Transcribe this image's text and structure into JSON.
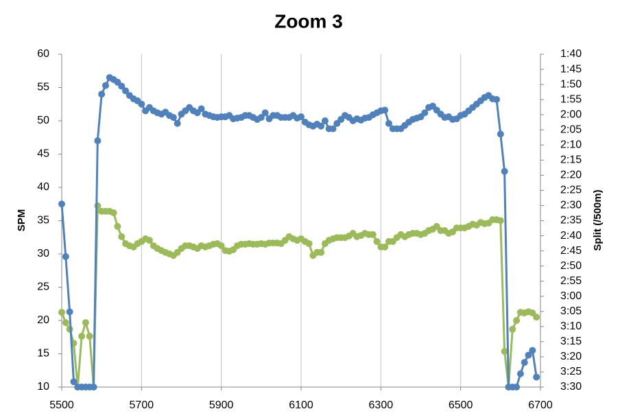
{
  "chart_data": {
    "type": "line",
    "title": "Zoom 3",
    "y_label": "SPM",
    "y2_label": "Split (/500m)",
    "x": [
      5500,
      5510,
      5520,
      5530,
      5540,
      5550,
      5560,
      5570,
      5580,
      5590,
      5600,
      5610,
      5620,
      5630,
      5640,
      5650,
      5660,
      5670,
      5680,
      5690,
      5700,
      5710,
      5720,
      5730,
      5740,
      5750,
      5760,
      5770,
      5780,
      5790,
      5800,
      5810,
      5820,
      5830,
      5840,
      5850,
      5860,
      5870,
      5880,
      5890,
      5900,
      5910,
      5920,
      5930,
      5940,
      5950,
      5960,
      5970,
      5980,
      5990,
      6000,
      6010,
      6020,
      6030,
      6040,
      6050,
      6060,
      6070,
      6080,
      6090,
      6100,
      6110,
      6120,
      6130,
      6140,
      6150,
      6160,
      6170,
      6180,
      6190,
      6200,
      6210,
      6220,
      6230,
      6240,
      6250,
      6260,
      6270,
      6280,
      6290,
      6300,
      6310,
      6320,
      6330,
      6340,
      6350,
      6360,
      6370,
      6380,
      6390,
      6400,
      6410,
      6420,
      6430,
      6440,
      6450,
      6460,
      6470,
      6480,
      6490,
      6500,
      6510,
      6520,
      6530,
      6540,
      6550,
      6560,
      6570,
      6580,
      6590,
      6600,
      6610,
      6620,
      6630,
      6640,
      6650,
      6660,
      6670,
      6680,
      6690
    ],
    "series": [
      {
        "color": "#4f81bd",
        "values": [
          37.5,
          29.6,
          21.3,
          10.8,
          10,
          10,
          10,
          10,
          10,
          47,
          54,
          55.3,
          56.5,
          56.2,
          55.8,
          55.2,
          54.5,
          53.8,
          53.3,
          53,
          52.5,
          51.5,
          52,
          51.5,
          51.2,
          51,
          51.3,
          50.8,
          50.5,
          49.6,
          51,
          51.5,
          52,
          51.5,
          51.2,
          51.8,
          51,
          50.8,
          50.6,
          50.5,
          50.6,
          50.6,
          50.8,
          50.3,
          50.4,
          50.5,
          50.8,
          50.8,
          50.5,
          50.2,
          50.5,
          51.2,
          50.3,
          50.8,
          50.8,
          50.5,
          50.5,
          50.5,
          50.8,
          50.4,
          50.6,
          49.8,
          49.4,
          49.2,
          49.5,
          49.2,
          50,
          48.8,
          48.8,
          49.6,
          50.2,
          50.8,
          50.5,
          50,
          50.3,
          50.1,
          50.4,
          50.5,
          50.9,
          51.2,
          51.5,
          51.6,
          49.6,
          48.8,
          48.8,
          48.8,
          49.3,
          49.8,
          50.2,
          50.4,
          50.6,
          51.2,
          52,
          52.2,
          51.6,
          51,
          50.5,
          50.6,
          50.2,
          50.3,
          50.8,
          51,
          51.5,
          52,
          52.5,
          53,
          53.5,
          53.8,
          53.3,
          53.2,
          48,
          42.4,
          10,
          10,
          10,
          12,
          13.7,
          14.8,
          15.5,
          11.5
        ]
      },
      {
        "color": "#9bbb59",
        "axis": "y2",
        "values": [
          185.3,
          188.7,
          190.9,
          195.5,
          210,
          193.2,
          188.7,
          193.2,
          210,
          150.1,
          151.9,
          151.9,
          151.9,
          152.4,
          156.9,
          160.3,
          162.6,
          163.3,
          163.7,
          162.6,
          161.9,
          161.0,
          161.5,
          163.3,
          164.2,
          164.9,
          165.5,
          166.0,
          166.5,
          165.5,
          164.2,
          163.3,
          163.3,
          163.7,
          164.2,
          163.3,
          163.7,
          163.3,
          162.8,
          162.6,
          163.3,
          164.9,
          165.1,
          164.6,
          163.3,
          162.8,
          162.8,
          162.6,
          162.8,
          162.8,
          162.6,
          162.8,
          162.4,
          162.4,
          162.4,
          162.6,
          161.5,
          160.3,
          161.0,
          161.5,
          161.0,
          161.9,
          162.6,
          166.5,
          165.5,
          165.5,
          162.6,
          161.5,
          161.0,
          160.6,
          160.6,
          160.6,
          160.1,
          159.2,
          160.3,
          159.9,
          159.2,
          159.6,
          159.6,
          161.9,
          163.7,
          163.7,
          161.9,
          161.9,
          160.6,
          159.6,
          160.3,
          159.6,
          159.2,
          159.2,
          159.6,
          159.2,
          158.3,
          157.8,
          156.9,
          158.3,
          158.3,
          159.2,
          158.7,
          157.4,
          157.4,
          157.4,
          156.9,
          156.2,
          156.5,
          155.6,
          156.0,
          155.8,
          154.7,
          154.7,
          155.0,
          198.2,
          210,
          190.9,
          188.0,
          185.3,
          185.5,
          185.1,
          185.5,
          186.9
        ]
      }
    ],
    "xlim": [
      5500,
      6700
    ],
    "xticks": [
      5500,
      5700,
      5900,
      6100,
      6300,
      6500,
      6700
    ],
    "xgrid": true,
    "ylim": [
      10,
      60
    ],
    "yticks": [
      10,
      15,
      20,
      25,
      30,
      35,
      40,
      45,
      50,
      55,
      60
    ],
    "y2lim": [
      210,
      100
    ],
    "y2ticks": [
      {
        "value": 100,
        "label": "1:40"
      },
      {
        "value": 105,
        "label": "1:45"
      },
      {
        "value": 110,
        "label": "1:50"
      },
      {
        "value": 115,
        "label": "1:55"
      },
      {
        "value": 120,
        "label": "2:00"
      },
      {
        "value": 125,
        "label": "2:05"
      },
      {
        "value": 130,
        "label": "2:10"
      },
      {
        "value": 135,
        "label": "2:15"
      },
      {
        "value": 140,
        "label": "2:20"
      },
      {
        "value": 145,
        "label": "2:25"
      },
      {
        "value": 150,
        "label": "2:30"
      },
      {
        "value": 155,
        "label": "2:35"
      },
      {
        "value": 160,
        "label": "2:40"
      },
      {
        "value": 165,
        "label": "2:45"
      },
      {
        "value": 170,
        "label": "2:50"
      },
      {
        "value": 175,
        "label": "2:55"
      },
      {
        "value": 180,
        "label": "3:00"
      },
      {
        "value": 185,
        "label": "3:05"
      },
      {
        "value": 190,
        "label": "3:10"
      },
      {
        "value": 195,
        "label": "3:15"
      },
      {
        "value": 200,
        "label": "3:20"
      },
      {
        "value": 205,
        "label": "3:25"
      },
      {
        "value": 210,
        "label": "3:30"
      }
    ]
  }
}
